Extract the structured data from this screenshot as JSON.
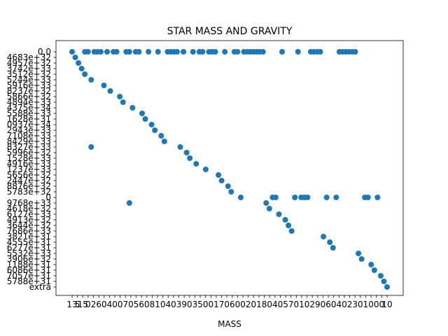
{
  "chart_data": {
    "type": "scatter",
    "title": "STAR MASS AND GRAVITY",
    "xlabel": "MASS",
    "ylabel": "",
    "marker_color": "#1f77b4",
    "y_categories": [
      "0.0",
      "4683e+32",
      "4957e+32",
      "3742e+33",
      "3512e+32",
      "5244e+33",
      "5916e+33",
      "8237e+32",
      "5866e+32",
      "4894e+33",
      "4375e+34",
      "5588e+33",
      "1628e+31",
      "0937e+34",
      "2943e+33",
      "7108e+33",
      "8429e+33",
      "8327e+33",
      "5996e+32",
      "1528e+33",
      "4916e+33",
      "1237e+33",
      "5656e+32",
      "2447e+32",
      "8876e+32",
      "5783e+32",
      "0",
      "9768e+33",
      "4618e+32",
      "6127e+33",
      "4913e+32",
      "3644e+32",
      "7686e+33",
      "3821e+31",
      "4555e+31",
      "6277e+31",
      "5532e+33",
      "3906e+32",
      "1188e+31",
      "6086e+31",
      "7057e+31",
      "5788e+31",
      "extra"
    ],
    "x_tick_labels": [
      "13",
      "5",
      "15",
      "0",
      "2",
      "6",
      "0",
      "4",
      "0",
      "0",
      "7",
      "0",
      "5",
      "6",
      "0",
      "8",
      "1",
      "0",
      "4",
      "0",
      "3",
      "9",
      "0",
      "3",
      "5",
      "0",
      "0",
      "1",
      "7",
      "0",
      "6",
      "0",
      "0",
      "2",
      "0",
      "1",
      "8",
      "0",
      "4",
      "0",
      "5",
      "7",
      "0",
      "1",
      "0",
      "2",
      "9",
      "0",
      "6",
      "0",
      "4",
      "0",
      "2",
      "3",
      "0",
      "1",
      "0",
      "0",
      "0",
      "10"
    ],
    "points": [
      [
        1,
        0
      ],
      [
        2,
        1
      ],
      [
        3,
        2
      ],
      [
        4,
        3
      ],
      [
        5,
        4
      ],
      [
        7,
        5
      ],
      [
        5,
        0
      ],
      [
        6,
        0
      ],
      [
        8,
        0
      ],
      [
        9,
        0
      ],
      [
        10,
        0
      ],
      [
        11,
        6
      ],
      [
        12,
        0
      ],
      [
        13,
        7
      ],
      [
        14,
        0
      ],
      [
        15,
        0
      ],
      [
        16,
        8
      ],
      [
        17,
        9
      ],
      [
        18,
        0
      ],
      [
        19,
        0
      ],
      [
        20,
        10
      ],
      [
        21,
        0
      ],
      [
        22,
        0
      ],
      [
        23,
        11
      ],
      [
        24,
        12
      ],
      [
        25,
        0
      ],
      [
        26,
        13
      ],
      [
        27,
        14
      ],
      [
        28,
        0
      ],
      [
        29,
        15
      ],
      [
        30,
        16
      ],
      [
        31,
        0
      ],
      [
        32,
        0
      ],
      [
        33,
        0
      ],
      [
        34,
        0
      ],
      [
        35,
        17
      ],
      [
        36,
        0
      ],
      [
        37,
        18
      ],
      [
        38,
        19
      ],
      [
        39,
        0
      ],
      [
        40,
        20
      ],
      [
        41,
        0
      ],
      [
        42,
        0
      ],
      [
        43,
        21
      ],
      [
        44,
        0
      ],
      [
        45,
        0
      ],
      [
        46,
        0
      ],
      [
        47,
        22
      ],
      [
        48,
        23
      ],
      [
        49,
        0
      ],
      [
        50,
        24
      ],
      [
        51,
        25
      ],
      [
        52,
        0
      ],
      [
        53,
        0
      ],
      [
        54,
        26
      ],
      [
        55,
        0
      ],
      [
        56,
        0
      ],
      [
        57,
        0
      ],
      [
        58,
        0
      ],
      [
        59,
        0
      ],
      [
        60,
        0
      ],
      [
        61,
        0
      ],
      [
        62,
        27
      ],
      [
        63,
        28
      ],
      [
        64,
        26
      ],
      [
        65,
        26
      ],
      [
        66,
        29
      ],
      [
        67,
        0
      ],
      [
        68,
        30
      ],
      [
        69,
        31
      ],
      [
        70,
        32
      ],
      [
        71,
        26
      ],
      [
        72,
        0
      ],
      [
        73,
        26
      ],
      [
        74,
        26
      ],
      [
        75,
        26
      ],
      [
        76,
        0
      ],
      [
        77,
        0
      ],
      [
        78,
        0
      ],
      [
        79,
        0
      ],
      [
        80,
        33
      ],
      [
        81,
        26
      ],
      [
        82,
        34
      ],
      [
        83,
        35
      ],
      [
        84,
        26
      ],
      [
        85,
        0
      ],
      [
        86,
        0
      ],
      [
        87,
        0
      ],
      [
        88,
        0
      ],
      [
        89,
        0
      ],
      [
        90,
        0
      ],
      [
        91,
        36
      ],
      [
        92,
        37
      ],
      [
        93,
        26
      ],
      [
        94,
        26
      ],
      [
        95,
        38
      ],
      [
        96,
        39
      ],
      [
        97,
        26
      ],
      [
        98,
        40
      ],
      [
        99,
        41
      ],
      [
        100,
        42
      ],
      [
        7,
        17
      ],
      [
        19,
        27
      ]
    ]
  }
}
